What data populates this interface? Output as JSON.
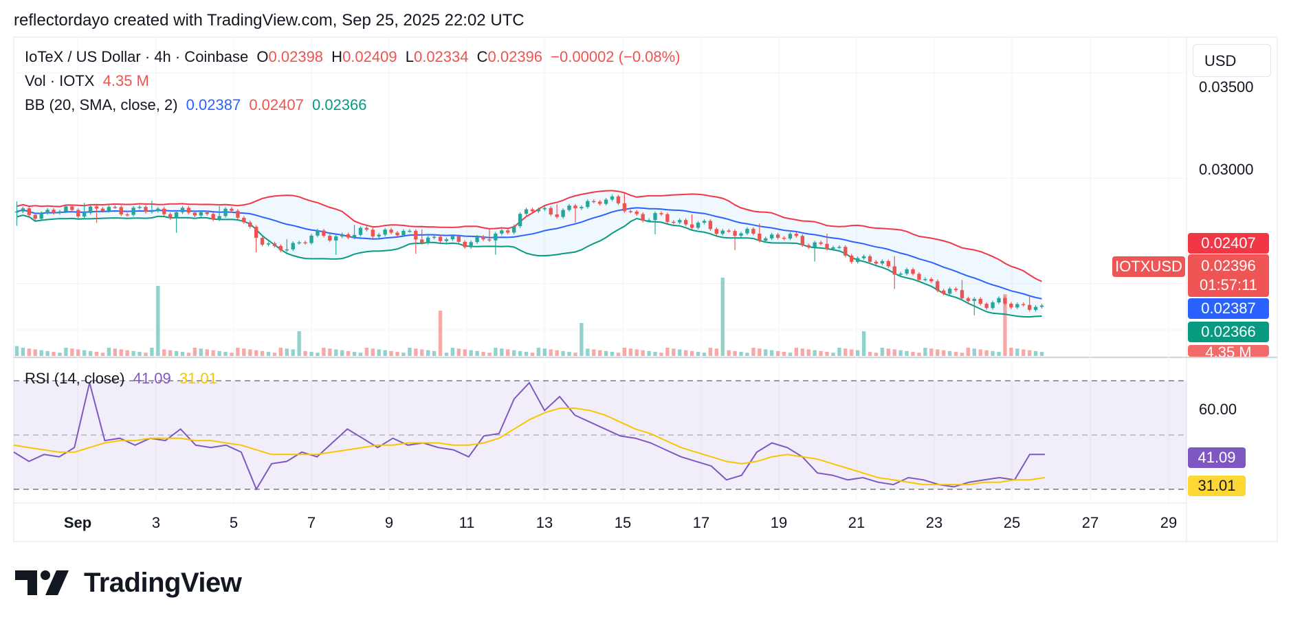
{
  "header": {
    "credit": "reflectordayo created with TradingView.com, Sep 25, 2025 22:02 UTC"
  },
  "legend": {
    "symbol": "IoTeX / US Dollar · 4h · Coinbase",
    "o_key": "O",
    "o_val": "0.02398",
    "h_key": "H",
    "h_val": "0.02409",
    "l_key": "L",
    "l_val": "0.02334",
    "c_key": "C",
    "c_val": "0.02396",
    "change": "−0.00002 (−0.08%)",
    "vol_label": "Vol · IOTX",
    "vol_val": "4.35 M",
    "bb_label": "BB (20, SMA, close, 2)",
    "bb_basis": "0.02387",
    "bb_upper": "0.02407",
    "bb_lower": "0.02366",
    "rsi_label": "RSI (14, close)",
    "rsi_val": "41.09",
    "rsi_ma": "31.01"
  },
  "currency_button": "USD",
  "price_axis": {
    "ticks": [
      "0.03500",
      "0.03000"
    ]
  },
  "rsi_axis": {
    "ticks": [
      "60.00"
    ]
  },
  "badges": {
    "bb_upper": "0.02407",
    "symbol": "IOTXUSD",
    "last_price": "0.02396",
    "countdown": "01:57:11",
    "bb_basis": "0.02387",
    "bb_lower": "0.02366",
    "volume": "4.35 M",
    "rsi": "41.09",
    "rsi_ma": "31.01"
  },
  "date_axis": {
    "ticks": [
      "Sep",
      "3",
      "5",
      "7",
      "9",
      "11",
      "13",
      "15",
      "17",
      "19",
      "21",
      "23",
      "25",
      "27",
      "29"
    ]
  },
  "logo": {
    "text": "TradingView"
  },
  "colors": {
    "up": "#26a69a",
    "down": "#ef5350",
    "bb_upper": "#f23645",
    "bb_basis": "#2962ff",
    "bb_lower": "#089981",
    "rsi": "#7e57c2",
    "rsi_ma": "#f7c600"
  },
  "chart_data": [
    {
      "type": "candlestick",
      "title": "IoTeX / US Dollar · 4h · Coinbase",
      "x_range": [
        "Aug 31",
        "Sep 25"
      ],
      "ylim": [
        0.0215,
        0.0365
      ],
      "price_key": [
        "date",
        "close"
      ],
      "close_trail": [
        [
          "Aug 31",
          0.0283
        ],
        [
          "Sep 1",
          0.0284
        ],
        [
          "Sep 2",
          0.0285
        ],
        [
          "Sep 2b",
          0.0285
        ],
        [
          "Sep 3",
          0.0284
        ],
        [
          "Sep 4",
          0.0283
        ],
        [
          "Sep 5",
          0.0283
        ],
        [
          "Sep 5b",
          0.0265
        ],
        [
          "Sep 6",
          0.0272
        ],
        [
          "Sep 7",
          0.0273
        ],
        [
          "Sep 8",
          0.0275
        ],
        [
          "Sep 9",
          0.0272
        ],
        [
          "Sep 10",
          0.027
        ],
        [
          "Sep 11",
          0.0271
        ],
        [
          "Sep 11b",
          0.0285
        ],
        [
          "Sep 12",
          0.0284
        ],
        [
          "Sep 13",
          0.0291
        ],
        [
          "Sep 14",
          0.0282
        ],
        [
          "Sep 15",
          0.028
        ],
        [
          "Sep 16",
          0.0276
        ],
        [
          "Sep 17",
          0.0273
        ],
        [
          "Sep 18",
          0.0272
        ],
        [
          "Sep 19",
          0.0268
        ],
        [
          "Sep 20",
          0.0262
        ],
        [
          "Sep 21",
          0.0257
        ],
        [
          "Sep 22",
          0.025
        ],
        [
          "Sep 23",
          0.0242
        ],
        [
          "Sep 24",
          0.024
        ],
        [
          "Sep 25",
          0.02396
        ]
      ],
      "bollinger": {
        "upper": 0.02407,
        "basis": 0.02387,
        "lower": 0.02366
      }
    },
    {
      "type": "bar",
      "title": "Vol · IOTX",
      "last_value": "4.35 M",
      "relative_values": [
        0.12,
        0.95,
        0.45,
        0.28,
        0.85,
        0.3,
        0.22,
        0.55,
        0.3,
        0.75,
        0.2,
        0.85,
        0.55,
        0.3,
        0.85,
        0.25,
        0.4,
        0.75,
        0.82
      ]
    },
    {
      "type": "line",
      "title": "RSI (14, close)",
      "ylim": [
        20,
        80
      ],
      "levels": [
        70,
        50,
        30
      ],
      "series": [
        {
          "name": "RSI",
          "last": 41.09,
          "values": [
            42,
            38,
            41,
            40,
            44,
            72,
            47,
            48,
            45,
            48,
            47,
            52,
            45,
            44,
            45,
            42,
            26,
            37,
            38,
            42,
            40,
            46,
            52,
            48,
            44,
            48,
            45,
            46,
            44,
            43,
            40,
            49,
            50,
            65,
            72,
            60,
            66,
            58,
            55,
            52,
            49,
            48,
            46,
            43,
            40,
            38,
            36,
            30,
            32,
            42,
            46,
            44,
            40,
            33,
            32,
            30,
            31,
            29,
            28,
            31,
            30,
            28,
            27,
            29,
            30,
            31,
            30,
            41,
            41
          ]
        },
        {
          "name": "MA",
          "last": 31.01,
          "values": [
            45,
            44,
            43,
            42,
            42,
            44,
            46,
            47,
            47,
            48,
            48,
            48,
            47,
            47,
            46,
            45,
            43,
            41,
            41,
            41,
            41,
            42,
            43,
            44,
            45,
            45,
            46,
            46,
            46,
            45,
            45,
            46,
            48,
            52,
            56,
            59,
            61,
            61,
            60,
            58,
            55,
            52,
            50,
            47,
            44,
            42,
            40,
            38,
            37,
            38,
            40,
            41,
            40,
            39,
            37,
            35,
            33,
            31,
            30,
            29,
            28,
            28,
            28,
            28,
            29,
            29,
            30,
            30,
            31
          ]
        }
      ]
    }
  ]
}
